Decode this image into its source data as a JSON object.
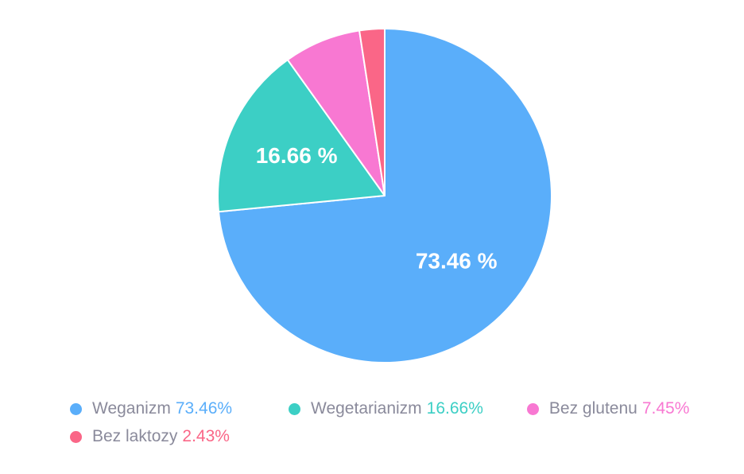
{
  "chart_data": {
    "type": "pie",
    "legend_position": "bottom",
    "direction": "clockwise",
    "start_angle": "top",
    "slice_label_color": "#ffffff",
    "legend_text_color": "#8a8a9b",
    "background_color": "#ffffff",
    "slice_border_color": "#ffffff",
    "series": [
      {
        "label": "Weganizm",
        "value": 73.46,
        "color": "#5aaefa",
        "slice_label": "73.46 %",
        "legend_percent": "73.46%",
        "show_slice_label": true
      },
      {
        "label": "Wegetarianizm",
        "value": 16.66,
        "color": "#3ccfc5",
        "slice_label": "16.66 %",
        "legend_percent": "16.66%",
        "show_slice_label": true
      },
      {
        "label": "Bez glutenu",
        "value": 7.45,
        "color": "#f878d2",
        "slice_label": "7.45 %",
        "legend_percent": "7.45%",
        "show_slice_label": false
      },
      {
        "label": "Bez laktozy",
        "value": 2.43,
        "color": "#fa6687",
        "slice_label": "2.43 %",
        "legend_percent": "2.43%",
        "show_slice_label": false
      }
    ]
  }
}
